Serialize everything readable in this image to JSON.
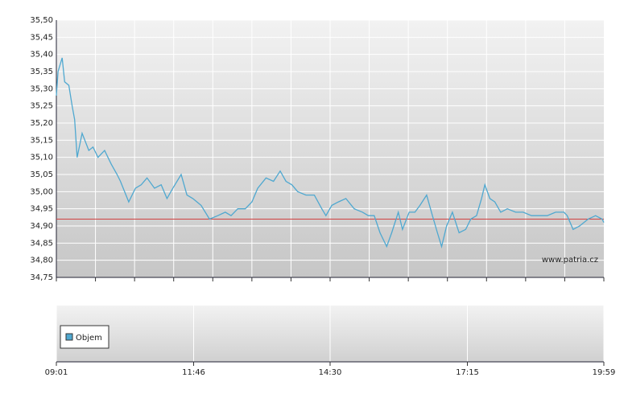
{
  "chart_data": {
    "type": "line",
    "x": [
      "09:01",
      "09:03",
      "09:08",
      "09:11",
      "09:16",
      "09:20",
      "09:23",
      "09:26",
      "09:32",
      "09:40",
      "09:45",
      "09:51",
      "09:59",
      "10:07",
      "10:14",
      "10:18",
      "10:28",
      "10:36",
      "10:43",
      "10:50",
      "10:59",
      "11:07",
      "11:14",
      "11:21",
      "11:31",
      "11:38",
      "11:45",
      "11:55",
      "12:05",
      "12:15",
      "12:24",
      "12:31",
      "12:39",
      "12:48",
      "12:56",
      "13:03",
      "13:13",
      "13:22",
      "13:30",
      "13:37",
      "13:44",
      "13:51",
      "14:01",
      "14:11",
      "14:20",
      "14:25",
      "14:32",
      "14:40",
      "14:49",
      "14:59",
      "15:09",
      "15:16",
      "15:23",
      "15:30",
      "15:38",
      "15:44",
      "15:52",
      "15:57",
      "16:05",
      "16:12",
      "16:18",
      "16:26",
      "16:33",
      "16:39",
      "16:44",
      "16:50",
      "16:57",
      "17:05",
      "17:13",
      "17:19",
      "17:26",
      "17:32",
      "17:36",
      "17:42",
      "17:48",
      "17:55",
      "18:03",
      "18:13",
      "18:22",
      "18:32",
      "18:42",
      "18:51",
      "19:01",
      "19:11",
      "19:15",
      "19:22",
      "19:30",
      "19:40",
      "19:49",
      "19:57",
      "19:59"
    ],
    "values": [
      35.28,
      35.35,
      35.39,
      35.32,
      35.31,
      35.25,
      35.21,
      35.1,
      35.17,
      35.12,
      35.13,
      35.1,
      35.12,
      35.08,
      35.05,
      35.03,
      34.97,
      35.01,
      35.02,
      35.04,
      35.01,
      35.02,
      34.98,
      35.01,
      35.05,
      34.99,
      34.98,
      34.96,
      34.92,
      34.93,
      34.94,
      34.93,
      34.95,
      34.95,
      34.97,
      35.01,
      35.04,
      35.03,
      35.06,
      35.03,
      35.02,
      35.0,
      34.99,
      34.99,
      34.95,
      34.93,
      34.96,
      34.97,
      34.98,
      34.95,
      34.94,
      34.93,
      34.93,
      34.88,
      34.84,
      34.88,
      34.94,
      34.89,
      34.94,
      34.94,
      34.96,
      34.99,
      34.93,
      34.88,
      34.84,
      34.9,
      34.94,
      34.88,
      34.89,
      34.92,
      34.93,
      34.98,
      35.02,
      34.98,
      34.97,
      34.94,
      34.95,
      34.94,
      34.94,
      34.93,
      34.93,
      34.93,
      34.94,
      34.94,
      34.93,
      34.89,
      34.9,
      34.92,
      34.93,
      34.92,
      34.91
    ],
    "color": "#4fa8d0",
    "reference_line": 34.92,
    "reference_color": "#d04040",
    "xlim": [
      "09:01",
      "19:59"
    ],
    "xticks": [
      "09:01",
      "11:46",
      "14:30",
      "17:15",
      "19:59"
    ],
    "ylim": [
      34.75,
      35.5
    ],
    "yticks": [
      {
        "value": 34.75,
        "label": "34,75"
      },
      {
        "value": 34.8,
        "label": "34,80"
      },
      {
        "value": 34.85,
        "label": "34,85"
      },
      {
        "value": 34.9,
        "label": "34,90"
      },
      {
        "value": 34.95,
        "label": "34,95"
      },
      {
        "value": 35.0,
        "label": "35,00"
      },
      {
        "value": 35.05,
        "label": "35,05"
      },
      {
        "value": 35.1,
        "label": "35,10"
      },
      {
        "value": 35.15,
        "label": "35,15"
      },
      {
        "value": 35.2,
        "label": "35,20"
      },
      {
        "value": 35.25,
        "label": "35,25"
      },
      {
        "value": 35.3,
        "label": "35,30"
      },
      {
        "value": 35.35,
        "label": "35,35"
      },
      {
        "value": 35.4,
        "label": "35,40"
      },
      {
        "value": 35.45,
        "label": "35,45"
      },
      {
        "value": 35.5,
        "label": "35,50"
      }
    ],
    "grid": true,
    "watermark": "www.patria.cz",
    "volume_legend": "Objem",
    "volume_color": "#4fa8d0"
  }
}
